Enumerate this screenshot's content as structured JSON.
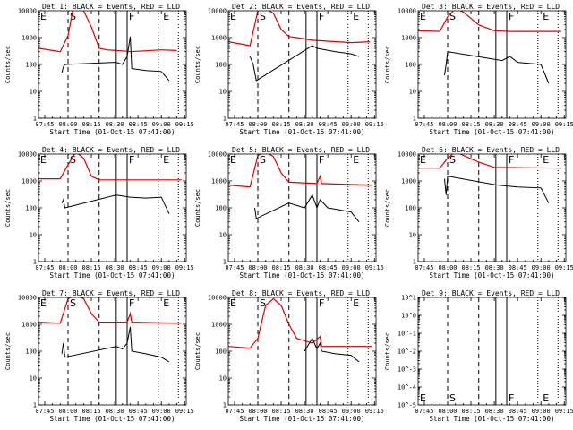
{
  "ui": {
    "xlabel": "Start Time (01-Oct-15 07:41:00)",
    "ylabel": "Counts/sec",
    "xticks": [
      "07:45",
      "08:00",
      "08:15",
      "08:30",
      "08:45",
      "09:00",
      "09:15"
    ],
    "yticks": [
      "1",
      "10",
      "100",
      "1000",
      "10000"
    ],
    "yticks_det9": [
      "10^-5",
      "10^-4",
      "10^-3",
      "10^-2",
      "10^-1",
      "10^0",
      "10^1"
    ],
    "markers": [
      "E",
      "S",
      "F",
      "E"
    ],
    "colors": {
      "events": "#000000",
      "lld": "#e00000"
    }
  },
  "chart_data": [
    {
      "title": "Det 1: BLACK = Events, RED = LLD",
      "type": "line",
      "xlabel": "Start Time (01-Oct-15 07:41:00)",
      "ylabel": "Counts/sec",
      "ylim": [
        1,
        10000
      ],
      "yscale": "log",
      "series": [
        {
          "name": "RED = LLD",
          "x": [
            "07:41",
            "07:50",
            "07:55",
            "08:00",
            "08:03",
            "08:05",
            "08:10",
            "08:15",
            "08:20",
            "08:25",
            "08:35",
            "08:40",
            "09:00",
            "09:10"
          ],
          "values": [
            400,
            330,
            300,
            1200,
            10000,
            12000,
            10000,
            2500,
            400,
            350,
            320,
            300,
            350,
            330
          ]
        },
        {
          "name": "BLACK = Events",
          "x": [
            "07:56",
            "07:57",
            "07:58",
            "08:31",
            "08:35",
            "08:38",
            "08:40",
            "08:41",
            "08:50",
            "09:00",
            "09:05"
          ],
          "values": [
            50,
            80,
            100,
            120,
            100,
            200,
            1100,
            70,
            60,
            55,
            25
          ]
        }
      ]
    },
    {
      "title": "Det 2: BLACK = Events, RED = LLD",
      "type": "line",
      "xlabel": "Start Time (01-Oct-15 07:41:00)",
      "ylabel": "Counts/sec",
      "ylim": [
        1,
        10000
      ],
      "yscale": "log",
      "series": [
        {
          "name": "RED = LLD",
          "x": [
            "07:41",
            "07:55",
            "08:00",
            "08:05",
            "08:10",
            "08:15",
            "08:20",
            "08:25",
            "08:35",
            "09:00",
            "09:12"
          ],
          "values": [
            700,
            500,
            10000,
            12000,
            8000,
            2000,
            1100,
            1000,
            800,
            650,
            700
          ]
        },
        {
          "name": "BLACK = Events",
          "x": [
            "07:55",
            "07:57",
            "07:59",
            "08:35",
            "08:38",
            "08:40",
            "08:50",
            "09:00",
            "09:05"
          ],
          "values": [
            200,
            100,
            25,
            500,
            400,
            380,
            300,
            250,
            200
          ]
        }
      ]
    },
    {
      "title": "Det 3: BLACK = Events, RED = LLD",
      "type": "line",
      "xlabel": "Start Time (01-Oct-15 07:41:00)",
      "ylabel": "Counts/sec",
      "ylim": [
        1,
        10000
      ],
      "yscale": "log",
      "series": [
        {
          "name": "RED = LLD",
          "x": [
            "07:41",
            "07:55",
            "08:00",
            "08:05",
            "08:10",
            "08:20",
            "08:30",
            "08:40",
            "09:00",
            "09:13"
          ],
          "values": [
            1800,
            1700,
            6000,
            12000,
            9000,
            3000,
            1800,
            1700,
            1700,
            1700
          ]
        },
        {
          "name": "BLACK = Events",
          "x": [
            "07:58",
            "07:59",
            "08:00",
            "08:32",
            "08:35",
            "08:40",
            "08:45",
            "09:00",
            "09:05"
          ],
          "values": [
            40,
            100,
            300,
            150,
            140,
            200,
            120,
            100,
            20
          ]
        }
      ]
    },
    {
      "title": "Det 4: BLACK = Events, RED = LLD",
      "type": "line",
      "xlabel": "Start Time (01-Oct-15 07:41:00)",
      "ylabel": "Counts/sec",
      "ylim": [
        1,
        10000
      ],
      "yscale": "log",
      "series": [
        {
          "name": "RED = LLD",
          "x": [
            "07:41",
            "07:55",
            "08:00",
            "08:05",
            "08:10",
            "08:15",
            "08:20",
            "09:13"
          ],
          "values": [
            1200,
            1200,
            4000,
            12000,
            7000,
            1500,
            1100,
            1100
          ]
        },
        {
          "name": "BLACK = Events",
          "x": [
            "07:56",
            "07:57",
            "07:58",
            "08:31",
            "08:40",
            "08:50",
            "09:00",
            "09:05"
          ],
          "values": [
            150,
            200,
            100,
            300,
            250,
            230,
            250,
            60
          ]
        }
      ]
    },
    {
      "title": "Det 5: BLACK = Events, RED = LLD",
      "type": "line",
      "xlabel": "Start Time (01-Oct-15 07:41:00)",
      "ylabel": "Counts/sec",
      "ylim": [
        1,
        10000
      ],
      "yscale": "log",
      "series": [
        {
          "name": "RED = LLD",
          "x": [
            "07:41",
            "07:55",
            "08:00",
            "08:05",
            "08:10",
            "08:15",
            "08:20",
            "08:38",
            "08:40",
            "08:41",
            "09:13"
          ],
          "values": [
            700,
            600,
            9000,
            12000,
            8000,
            2000,
            900,
            800,
            1500,
            800,
            700
          ]
        },
        {
          "name": "BLACK = Events",
          "x": [
            "07:58",
            "07:59",
            "08:20",
            "08:30",
            "08:35",
            "08:38",
            "08:40",
            "08:45",
            "09:00",
            "09:05"
          ],
          "values": [
            100,
            40,
            150,
            100,
            300,
            100,
            200,
            100,
            70,
            30
          ]
        }
      ]
    },
    {
      "title": "Det 6: BLACK = Events, RED = LLD",
      "type": "line",
      "xlabel": "Start Time (01-Oct-15 07:41:00)",
      "ylabel": "Counts/sec",
      "ylim": [
        1,
        10000
      ],
      "yscale": "log",
      "series": [
        {
          "name": "RED = LLD",
          "x": [
            "07:41",
            "07:55",
            "08:00",
            "08:05",
            "08:10",
            "08:20",
            "08:30",
            "09:13"
          ],
          "values": [
            3000,
            3000,
            7000,
            12000,
            9000,
            5000,
            3200,
            3000
          ]
        },
        {
          "name": "BLACK = Events",
          "x": [
            "07:58",
            "07:59",
            "08:00",
            "08:32",
            "08:45",
            "09:00",
            "09:05"
          ],
          "values": [
            1200,
            300,
            1500,
            700,
            600,
            550,
            150
          ]
        }
      ]
    },
    {
      "title": "Det 7: BLACK = Events, RED = LLD",
      "type": "line",
      "xlabel": "Start Time (01-Oct-15 07:41:00)",
      "ylabel": "Counts/sec",
      "ylim": [
        1,
        10000
      ],
      "yscale": "log",
      "series": [
        {
          "name": "RED = LLD",
          "x": [
            "07:41",
            "07:55",
            "08:00",
            "08:05",
            "08:10",
            "08:15",
            "08:20",
            "08:38",
            "08:40",
            "08:41",
            "09:13"
          ],
          "values": [
            1200,
            1100,
            9000,
            12000,
            9000,
            2500,
            1200,
            1200,
            2500,
            1200,
            1100
          ]
        },
        {
          "name": "BLACK = Events",
          "x": [
            "07:56",
            "07:57",
            "07:58",
            "08:31",
            "08:35",
            "08:38",
            "08:40",
            "08:41",
            "08:50",
            "09:00",
            "09:05"
          ],
          "values": [
            80,
            200,
            60,
            150,
            120,
            200,
            800,
            100,
            80,
            60,
            40
          ]
        }
      ]
    },
    {
      "title": "Det 8: BLACK = Events, RED = LLD",
      "type": "line",
      "xlabel": "Start Time (01-Oct-15 07:41:00)",
      "ylabel": "Counts/sec",
      "ylim": [
        1,
        10000
      ],
      "yscale": "log",
      "series": [
        {
          "name": "RED = LLD",
          "x": [
            "07:41",
            "07:55",
            "08:00",
            "08:05",
            "08:10",
            "08:15",
            "08:20",
            "08:25",
            "08:35",
            "08:40",
            "08:41",
            "09:13"
          ],
          "values": [
            150,
            130,
            300,
            5000,
            9000,
            5000,
            1000,
            300,
            200,
            350,
            150,
            150
          ]
        },
        {
          "name": "BLACK = Events",
          "x": [
            "08:30",
            "08:35",
            "08:38",
            "08:40",
            "08:41",
            "08:50",
            "09:00",
            "09:05"
          ],
          "values": [
            100,
            300,
            120,
            200,
            100,
            80,
            70,
            40
          ]
        }
      ]
    },
    {
      "title": "Det 9: BLACK = Events, RED = LLD",
      "type": "line",
      "xlabel": "Start Time (01-Oct-15 07:41:00)",
      "ylabel": "Counts/sec",
      "ylim": [
        1e-05,
        10
      ],
      "yscale": "log",
      "series": []
    }
  ]
}
